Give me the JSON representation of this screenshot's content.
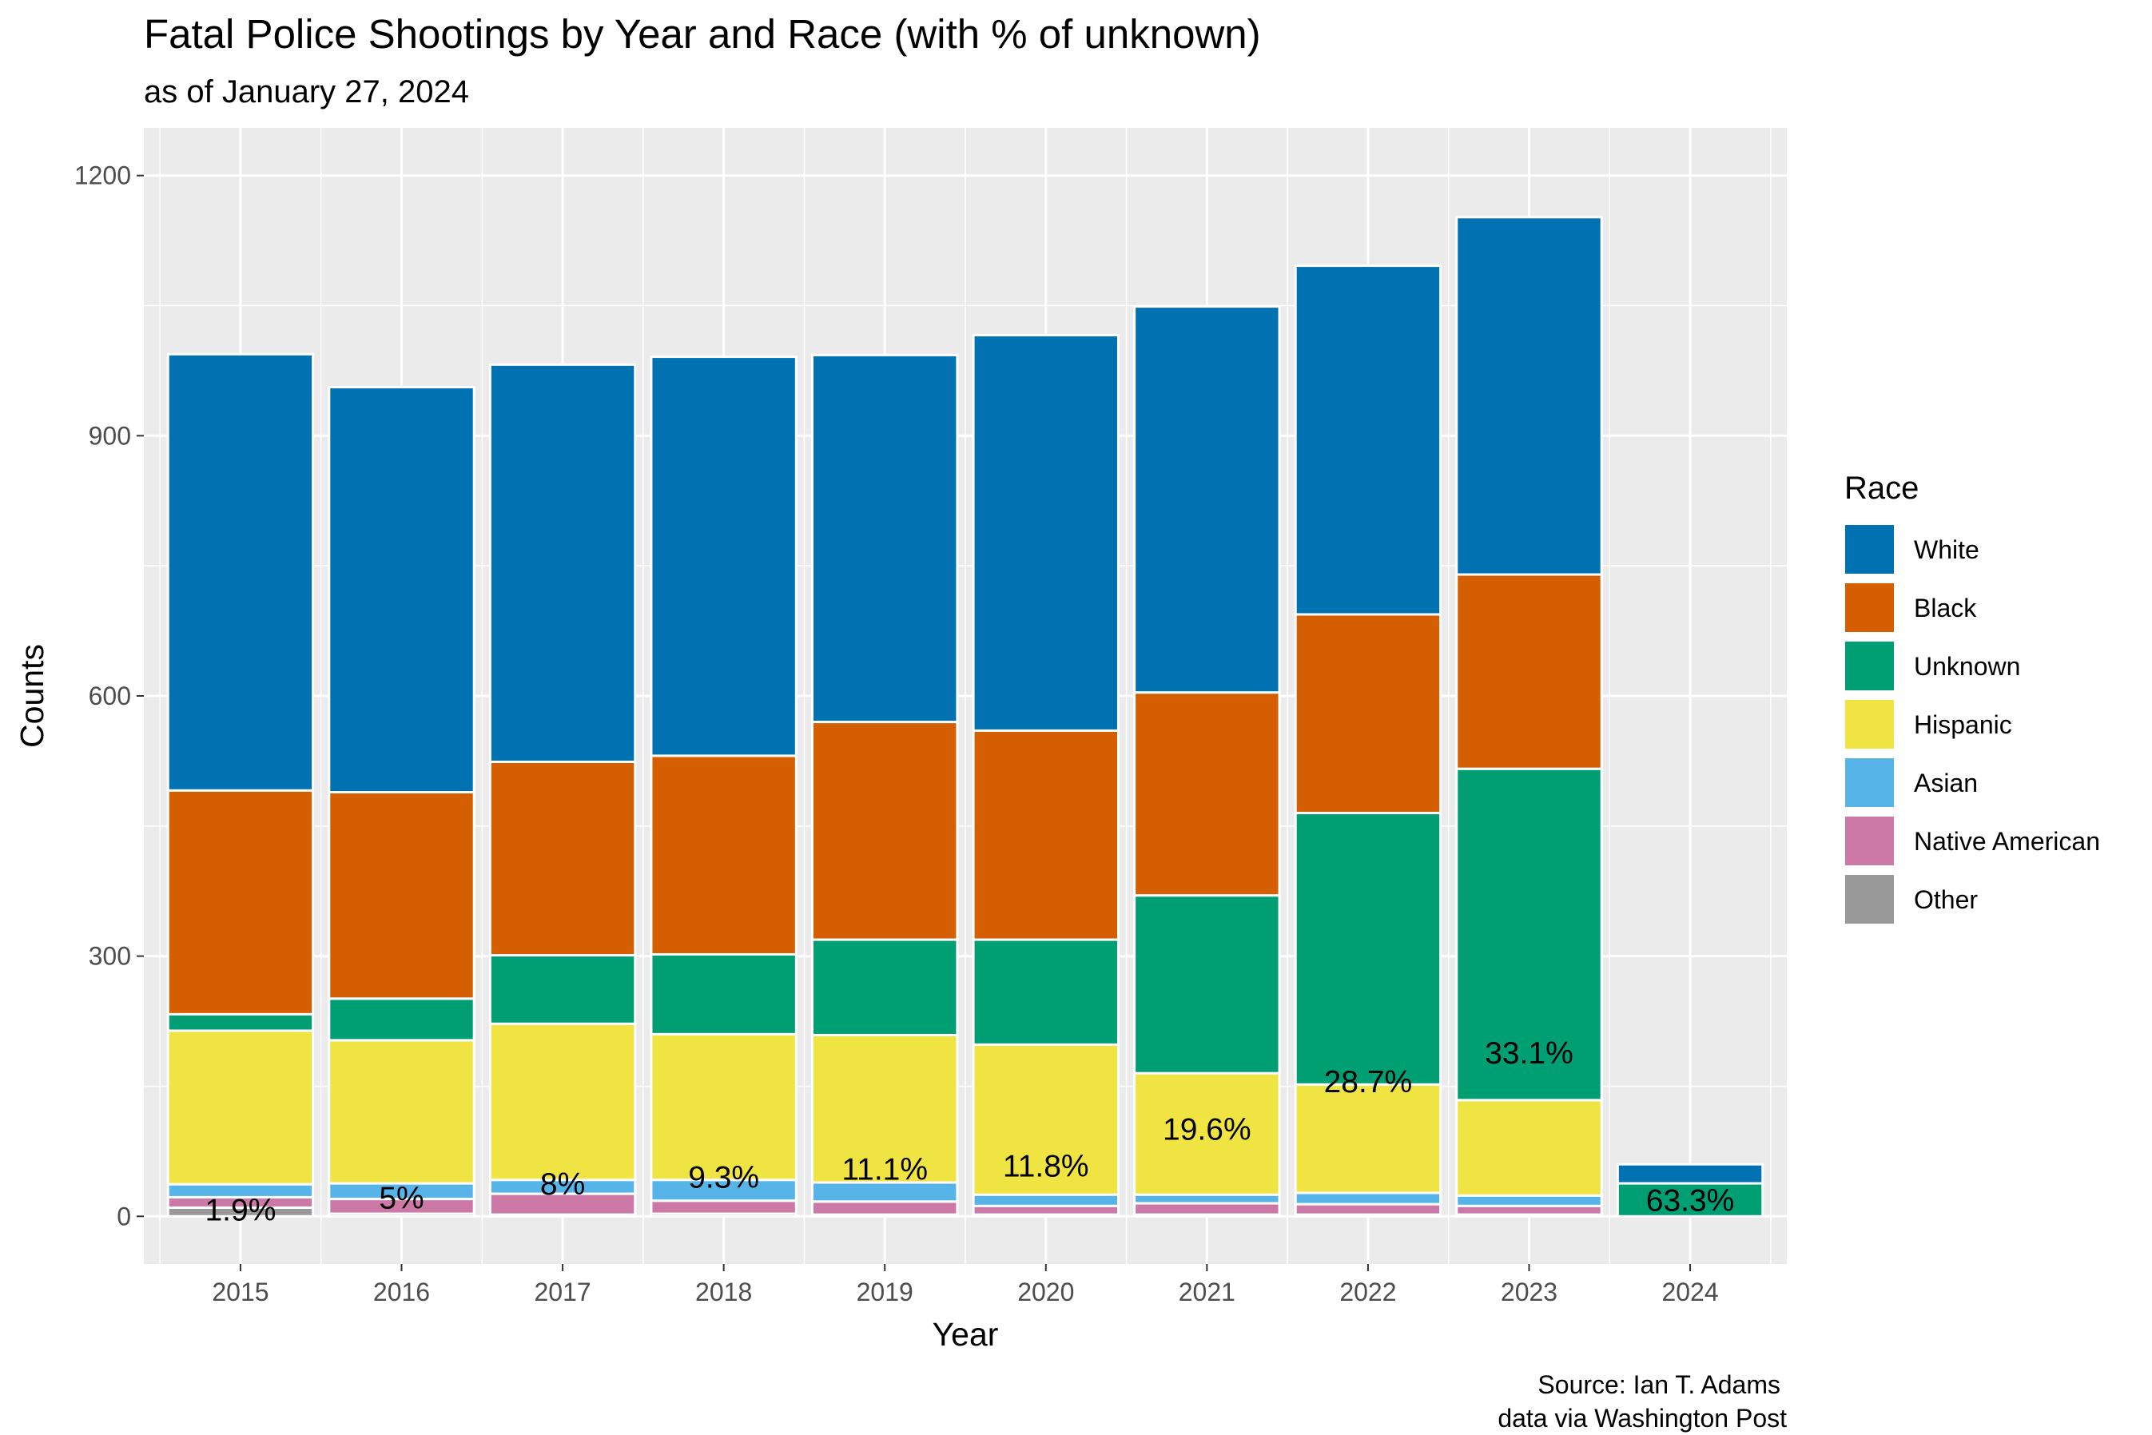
{
  "title": "Fatal Police Shootings by Year and Race (with % of unknown)",
  "subtitle": "as of January 27, 2024",
  "caption": [
    "Source: Ian T. Adams",
    "data via Washington Post"
  ],
  "colors": {
    "White": "#0072B2",
    "Black": "#D55E00",
    "Unknown": "#009E73",
    "Hispanic": "#F0E442",
    "Asian": "#56B4E9",
    "Native American": "#CC79A7",
    "Other": "#999999",
    "panel": "#EBEBEB",
    "grid": "#FFFFFF"
  },
  "chart_data": {
    "type": "bar",
    "stacked": true,
    "title": "Fatal Police Shootings by Year and Race (with % of unknown)",
    "subtitle": "as of January 27, 2024",
    "xlabel": "Year",
    "ylabel": "Counts",
    "ylim": [
      -55,
      1255
    ],
    "yticks": [
      0,
      300,
      600,
      900,
      1200
    ],
    "categories": [
      "2015",
      "2016",
      "2017",
      "2018",
      "2019",
      "2020",
      "2021",
      "2022",
      "2023",
      "2024"
    ],
    "legend_title": "Race",
    "legend_position": "right",
    "grid": true,
    "series": [
      {
        "name": "Other",
        "values": [
          10,
          3,
          2,
          3,
          2,
          2,
          2,
          2,
          2,
          0
        ]
      },
      {
        "name": "Native American",
        "values": [
          12,
          17,
          24,
          15,
          15,
          10,
          13,
          12,
          10,
          0
        ]
      },
      {
        "name": "Asian",
        "values": [
          15,
          18,
          16,
          24,
          22,
          13,
          10,
          13,
          12,
          0
        ]
      },
      {
        "name": "Hispanic",
        "values": [
          177,
          165,
          180,
          168,
          170,
          173,
          140,
          125,
          110,
          0
        ]
      },
      {
        "name": "Unknown",
        "values": [
          19,
          48,
          79,
          92,
          110,
          121,
          205,
          313,
          382,
          38
        ]
      },
      {
        "name": "Black",
        "values": [
          258,
          238,
          223,
          229,
          251,
          241,
          234,
          229,
          224,
          0
        ]
      },
      {
        "name": "White",
        "values": [
          503,
          467,
          458,
          460,
          423,
          456,
          445,
          402,
          412,
          22
        ]
      }
    ],
    "legend_order": [
      "White",
      "Black",
      "Unknown",
      "Hispanic",
      "Asian",
      "Native American",
      "Other"
    ],
    "annotations": [
      {
        "category": "2015",
        "label": "1.9%",
        "y": 8
      },
      {
        "category": "2016",
        "label": "5%",
        "y": 22
      },
      {
        "category": "2017",
        "label": "8%",
        "y": 38
      },
      {
        "category": "2018",
        "label": "9.3%",
        "y": 46
      },
      {
        "category": "2019",
        "label": "11.1%",
        "y": 55
      },
      {
        "category": "2020",
        "label": "11.8%",
        "y": 59
      },
      {
        "category": "2021",
        "label": "19.6%",
        "y": 101
      },
      {
        "category": "2022",
        "label": "28.7%",
        "y": 156
      },
      {
        "category": "2023",
        "label": "33.1%",
        "y": 189
      },
      {
        "category": "2024",
        "label": "63.3%",
        "y": 19
      }
    ]
  }
}
